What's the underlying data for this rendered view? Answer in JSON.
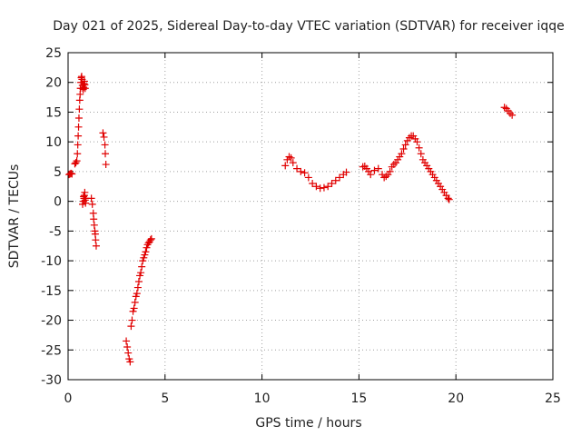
{
  "chart_data": {
    "type": "scatter",
    "title": "Day 021 of 2025, Sidereal Day-to-day VTEC variation (SDTVAR) for receiver iqqe",
    "xlabel": "GPS time / hours",
    "ylabel": "SDTVAR / TECUs",
    "xlim": [
      0,
      25
    ],
    "ylim": [
      -30,
      25
    ],
    "xticks": [
      0,
      5,
      10,
      15,
      20,
      25
    ],
    "yticks": [
      -30,
      -25,
      -20,
      -15,
      -10,
      -5,
      0,
      5,
      10,
      15,
      20,
      25
    ],
    "xtick_labels": [
      "0",
      "5",
      "10",
      "15",
      "20",
      "25"
    ],
    "ytick_labels": [
      "-30",
      "-25",
      "-20",
      "-15",
      "-10",
      "-5",
      "0",
      "5",
      "10",
      "15",
      "20",
      "25"
    ],
    "grid": true,
    "marker": "+",
    "color": "#e00000",
    "series": [
      {
        "name": "SDTVAR",
        "x": [
          0.05,
          0.1,
          0.15,
          0.2,
          0.35,
          0.4,
          0.45,
          0.48,
          0.5,
          0.52,
          0.54,
          0.56,
          0.58,
          0.6,
          0.62,
          0.64,
          0.66,
          0.68,
          0.7,
          0.72,
          0.74,
          0.76,
          0.78,
          0.8,
          0.82,
          0.84,
          0.86,
          0.88,
          0.8,
          0.82,
          0.84,
          0.86,
          0.88,
          0.9,
          0.92,
          0.75,
          0.8,
          1.2,
          1.25,
          1.3,
          1.32,
          1.35,
          1.38,
          1.4,
          1.42,
          1.45,
          1.8,
          1.85,
          1.9,
          1.92,
          1.95,
          3.0,
          3.05,
          3.1,
          3.15,
          3.2,
          3.25,
          3.3,
          3.35,
          3.4,
          3.45,
          3.5,
          3.55,
          3.6,
          3.65,
          3.7,
          3.75,
          3.8,
          3.85,
          3.9,
          3.95,
          4.0,
          4.05,
          4.1,
          4.15,
          4.2,
          4.25,
          4.3,
          11.2,
          11.3,
          11.4,
          11.5,
          11.6,
          11.8,
          12.0,
          12.2,
          12.4,
          12.6,
          12.8,
          13.0,
          13.2,
          13.4,
          13.6,
          13.8,
          14.0,
          14.2,
          14.35,
          15.2,
          15.3,
          15.4,
          15.5,
          15.6,
          15.8,
          16.0,
          16.2,
          16.3,
          16.4,
          16.5,
          16.6,
          16.7,
          16.8,
          16.9,
          17.0,
          17.1,
          17.2,
          17.3,
          17.4,
          17.5,
          17.6,
          17.7,
          17.8,
          17.9,
          18.0,
          18.1,
          18.2,
          18.3,
          18.4,
          18.5,
          18.6,
          18.7,
          18.8,
          18.9,
          19.0,
          19.1,
          19.2,
          19.3,
          19.4,
          19.5,
          19.6,
          19.65,
          22.5,
          22.6,
          22.7,
          22.8,
          22.9
        ],
        "y": [
          4.5,
          4.6,
          4.7,
          4.6,
          6.3,
          6.5,
          6.8,
          8.0,
          9.5,
          11.0,
          12.5,
          14.0,
          15.5,
          17.0,
          18.0,
          19.0,
          20.0,
          20.8,
          21.0,
          20.5,
          19.5,
          19.0,
          18.8,
          19.2,
          19.8,
          20.2,
          19.6,
          19.0,
          0.0,
          0.5,
          1.0,
          1.5,
          0.2,
          -0.3,
          0.5,
          -0.5,
          0.8,
          0.5,
          -0.5,
          -2.0,
          -3.0,
          -4.0,
          -5.0,
          -5.5,
          -6.5,
          -7.5,
          11.5,
          10.8,
          9.5,
          8.0,
          6.2,
          -23.5,
          -24.5,
          -25.5,
          -26.5,
          -27.0,
          -21.0,
          -20.0,
          -18.5,
          -18.0,
          -17.0,
          -16.0,
          -15.5,
          -14.5,
          -13.5,
          -12.5,
          -12.0,
          -11.0,
          -10.0,
          -9.5,
          -9.0,
          -8.5,
          -7.8,
          -7.3,
          -7.0,
          -6.8,
          -6.5,
          -6.3,
          6.0,
          7.0,
          7.5,
          7.3,
          6.5,
          5.5,
          5.0,
          4.8,
          4.0,
          3.0,
          2.5,
          2.2,
          2.3,
          2.5,
          3.0,
          3.5,
          4.0,
          4.5,
          4.9,
          5.8,
          5.9,
          5.5,
          5.0,
          4.5,
          5.2,
          5.5,
          4.5,
          4.0,
          4.2,
          4.5,
          5.0,
          5.8,
          6.2,
          6.5,
          7.0,
          7.5,
          8.0,
          8.8,
          9.5,
          10.2,
          10.7,
          11.0,
          11.0,
          10.5,
          10.0,
          9.0,
          8.0,
          7.0,
          6.5,
          6.0,
          5.5,
          5.0,
          4.5,
          4.0,
          3.5,
          3.0,
          2.5,
          2.0,
          1.5,
          1.0,
          0.5,
          0.3,
          15.8,
          15.6,
          15.2,
          14.8,
          14.5
        ]
      }
    ]
  }
}
